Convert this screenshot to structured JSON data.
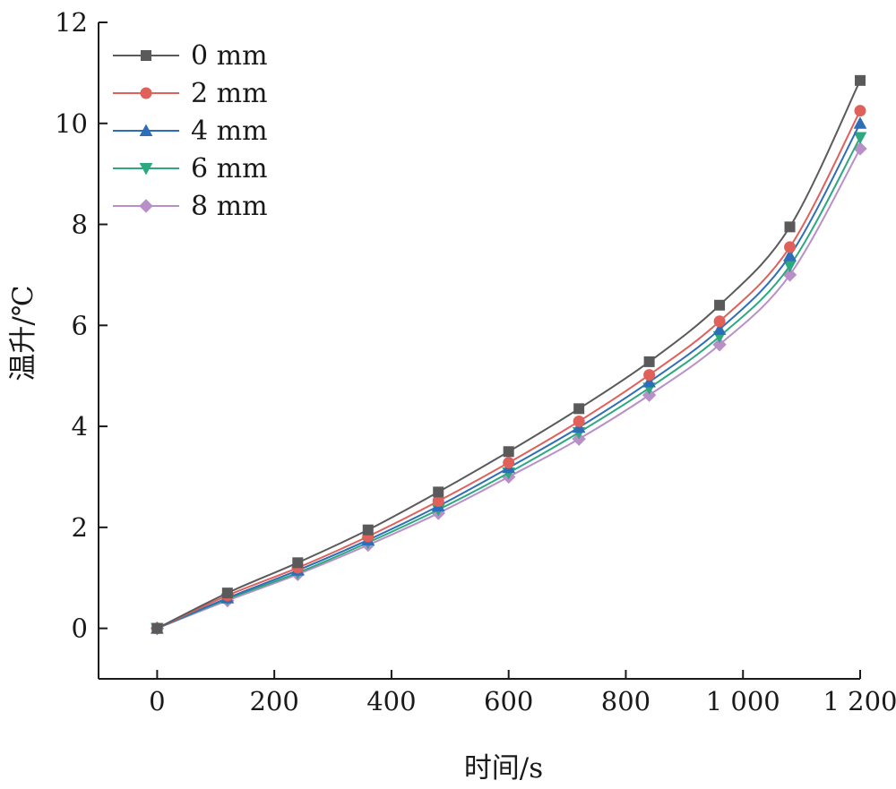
{
  "chart_data": {
    "type": "line",
    "xlabel": "时间/s",
    "ylabel": "温升/℃",
    "xlim": [
      -100,
      1200
    ],
    "ylim": [
      -1,
      12
    ],
    "x_ticks": [
      0,
      200,
      400,
      600,
      800,
      1000,
      1200
    ],
    "x_tick_labels": [
      "0",
      "200",
      "400",
      "600",
      "800",
      "1 000",
      "1 200"
    ],
    "y_ticks": [
      0,
      2,
      4,
      6,
      8,
      10,
      12
    ],
    "y_tick_labels": [
      "0",
      "2",
      "4",
      "6",
      "8",
      "10",
      "12"
    ],
    "grid": false,
    "legend_position": "top-left",
    "x": [
      0,
      120,
      240,
      360,
      480,
      600,
      720,
      840,
      960,
      1080,
      1200
    ],
    "series": [
      {
        "name": "0 mm",
        "color": "#5a5a5a",
        "marker": "square",
        "values": [
          0,
          0.7,
          1.3,
          1.95,
          2.7,
          3.5,
          4.35,
          5.28,
          6.4,
          7.95,
          10.85
        ]
      },
      {
        "name": "2 mm",
        "color": "#e0605a",
        "marker": "circle",
        "values": [
          0,
          0.65,
          1.2,
          1.82,
          2.52,
          3.28,
          4.1,
          5.02,
          6.08,
          7.55,
          10.25
        ]
      },
      {
        "name": "4 mm",
        "color": "#2c6fb8",
        "marker": "triangle-up",
        "values": [
          0,
          0.6,
          1.15,
          1.75,
          2.42,
          3.18,
          3.98,
          4.88,
          5.92,
          7.38,
          10.0
        ]
      },
      {
        "name": "6 mm",
        "color": "#2ea87e",
        "marker": "triangle-down",
        "values": [
          0,
          0.58,
          1.1,
          1.7,
          2.35,
          3.08,
          3.88,
          4.76,
          5.78,
          7.18,
          9.72
        ]
      },
      {
        "name": "8 mm",
        "color": "#b98fc7",
        "marker": "diamond",
        "values": [
          0,
          0.55,
          1.07,
          1.65,
          2.28,
          3.0,
          3.75,
          4.62,
          5.62,
          7.0,
          9.5
        ]
      }
    ]
  }
}
